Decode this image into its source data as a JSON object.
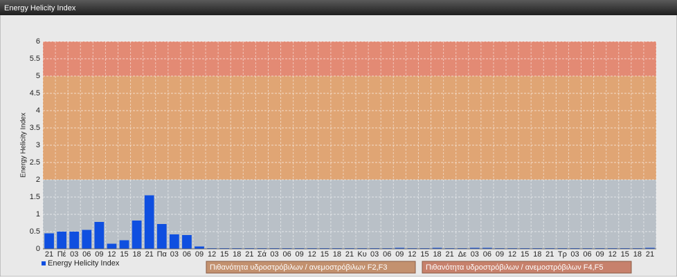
{
  "chart_data": {
    "type": "bar",
    "title": "Energy Helicity Index",
    "y_label": "Energy Helicity Index",
    "categories": [
      "21",
      "Πέ",
      "03",
      "06",
      "09",
      "12",
      "15",
      "18",
      "21",
      "Πα",
      "03",
      "06",
      "09",
      "12",
      "15",
      "18",
      "21",
      "Σά",
      "03",
      "06",
      "09",
      "12",
      "15",
      "18",
      "21",
      "Κυ",
      "03",
      "06",
      "09",
      "12",
      "15",
      "18",
      "21",
      "Δε",
      "03",
      "06",
      "09",
      "12",
      "15",
      "18",
      "21",
      "Τρ",
      "03",
      "06",
      "09",
      "12",
      "15",
      "18",
      "21"
    ],
    "series": [
      {
        "name": "Energy Helicity Index",
        "color": "#0f4fe0",
        "values": [
          0.45,
          0.5,
          0.5,
          0.55,
          0.78,
          0.15,
          0.25,
          0.82,
          1.55,
          0.72,
          0.42,
          0.4,
          0.07,
          0.02,
          0.02,
          0.02,
          0.02,
          0.02,
          0.02,
          0.02,
          0.02,
          0.02,
          0.02,
          0.02,
          0.02,
          0.02,
          0.02,
          0.02,
          0.03,
          0.02,
          0.02,
          0.03,
          0.02,
          0.02,
          0.03,
          0.03,
          0.02,
          0.02,
          0.02,
          0.02,
          0.02,
          0.02,
          0.02,
          0.02,
          0.02,
          0.02,
          0.02,
          0.02,
          0.03
        ]
      }
    ],
    "ylim": [
      0,
      6
    ],
    "yticks": [
      0,
      0.5,
      1,
      1.5,
      2,
      2.5,
      3,
      3.5,
      4,
      4.5,
      5,
      5.5,
      6
    ],
    "grid": true,
    "bands": [
      {
        "from": 0,
        "to": 2,
        "color": "#b9c0c7"
      },
      {
        "from": 2,
        "to": 5,
        "color": "#e0a574"
      },
      {
        "from": 5,
        "to": 6,
        "color": "#e38a74"
      }
    ],
    "band_legend": [
      {
        "name": "Πιθανότητα υδροστρόβιλων / ανεμοστρόβιλων F2,F3",
        "color": "#c3916f"
      },
      {
        "name": "Πιθανότητα υδροστρόβιλων / ανεμοστρόβιλων F4,F5",
        "color": "#c7816c"
      }
    ]
  }
}
